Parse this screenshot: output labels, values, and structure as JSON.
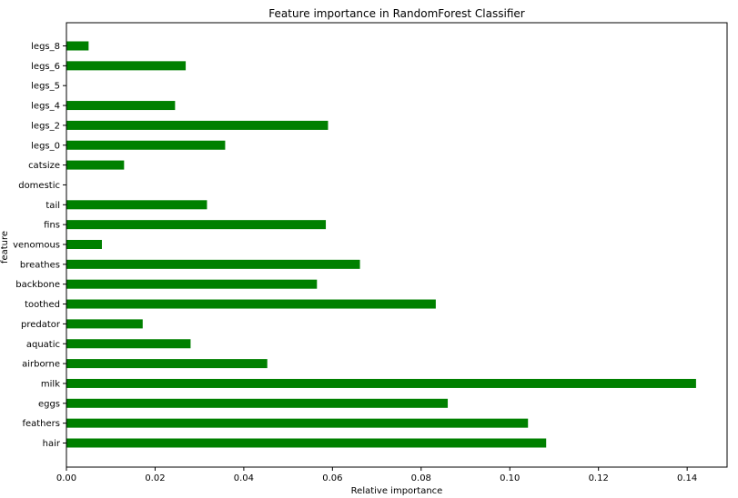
{
  "chart_data": {
    "type": "bar",
    "orientation": "horizontal",
    "title": "Feature importance in RandomForest Classifier",
    "xlabel": "Relative importance",
    "ylabel": "feature",
    "xlim": [
      0,
      0.149
    ],
    "x_ticks": [
      "0.00",
      "0.02",
      "0.04",
      "0.06",
      "0.08",
      "0.10",
      "0.12",
      "0.14"
    ],
    "grid": false,
    "bar_color": "#008000",
    "categories": [
      "hair",
      "feathers",
      "eggs",
      "milk",
      "airborne",
      "aquatic",
      "predator",
      "toothed",
      "backbone",
      "breathes",
      "venomous",
      "fins",
      "tail",
      "domestic",
      "catsize",
      "legs_0",
      "legs_2",
      "legs_4",
      "legs_5",
      "legs_6",
      "legs_8"
    ],
    "values": [
      0.1082,
      0.1041,
      0.086,
      0.142,
      0.0453,
      0.028,
      0.0172,
      0.0833,
      0.0565,
      0.0662,
      0.008,
      0.0585,
      0.0317,
      0.0,
      0.013,
      0.0358,
      0.059,
      0.0245,
      0.0,
      0.0269,
      0.005
    ]
  }
}
